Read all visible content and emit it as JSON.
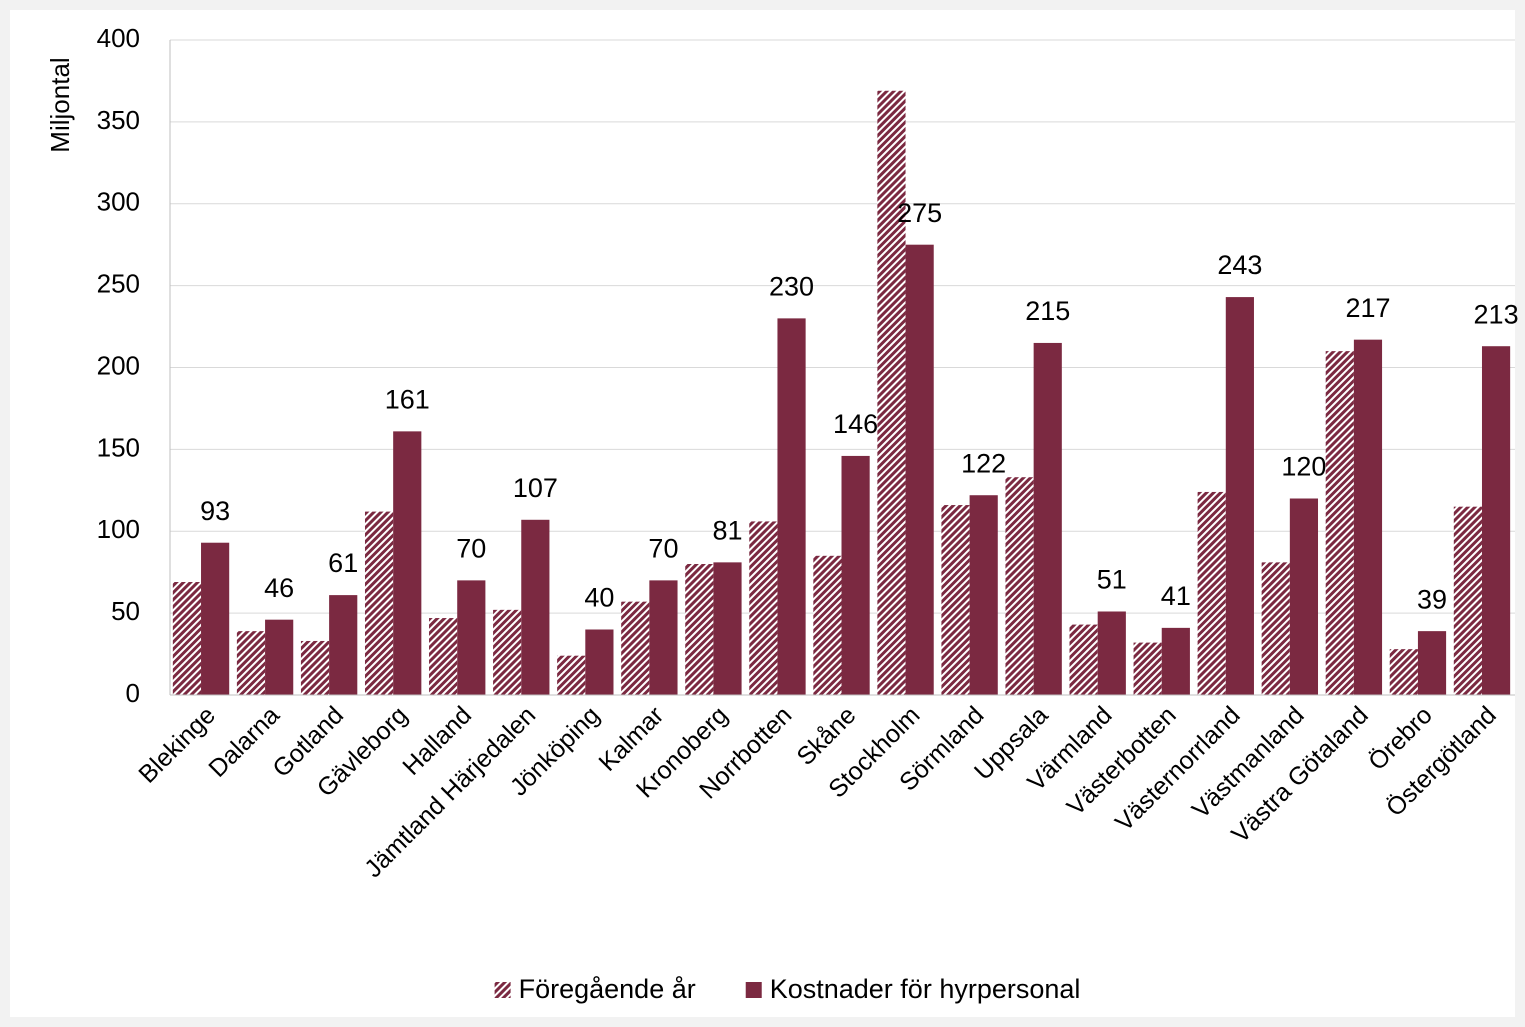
{
  "chart_data": {
    "type": "bar",
    "y_label": "Miljontal",
    "categories": [
      "Blekinge",
      "Dalarna",
      "Gotland",
      "Gävleborg",
      "Halland",
      "Jämtland Härjedalen",
      "Jönköping",
      "Kalmar",
      "Kronoberg",
      "Norrbotten",
      "Skåne",
      "Stockholm",
      "Sörmland",
      "Uppsala",
      "Värmland",
      "Västerbotten",
      "Västernorrland",
      "Västmanland",
      "Västra Götaland",
      "Örebro",
      "Östergötland"
    ],
    "series": [
      {
        "name": "Föregående år",
        "color": "#7b2941",
        "pattern": "hatch",
        "show_labels": false,
        "values": [
          69,
          39,
          33,
          112,
          47,
          52,
          24,
          57,
          80,
          106,
          85,
          369,
          116,
          133,
          43,
          32,
          124,
          81,
          210,
          28,
          115
        ]
      },
      {
        "name": "Kostnader för hyrpersonal",
        "color": "#7b2941",
        "pattern": "solid",
        "show_labels": true,
        "values": [
          93,
          46,
          61,
          161,
          70,
          107,
          40,
          70,
          81,
          230,
          146,
          275,
          122,
          215,
          51,
          41,
          243,
          120,
          217,
          39,
          213
        ]
      }
    ],
    "ylim": [
      0,
      400
    ],
    "yticks": [
      0,
      50,
      100,
      150,
      200,
      250,
      300,
      350,
      400
    ],
    "grid": true,
    "legend": "bottom"
  }
}
